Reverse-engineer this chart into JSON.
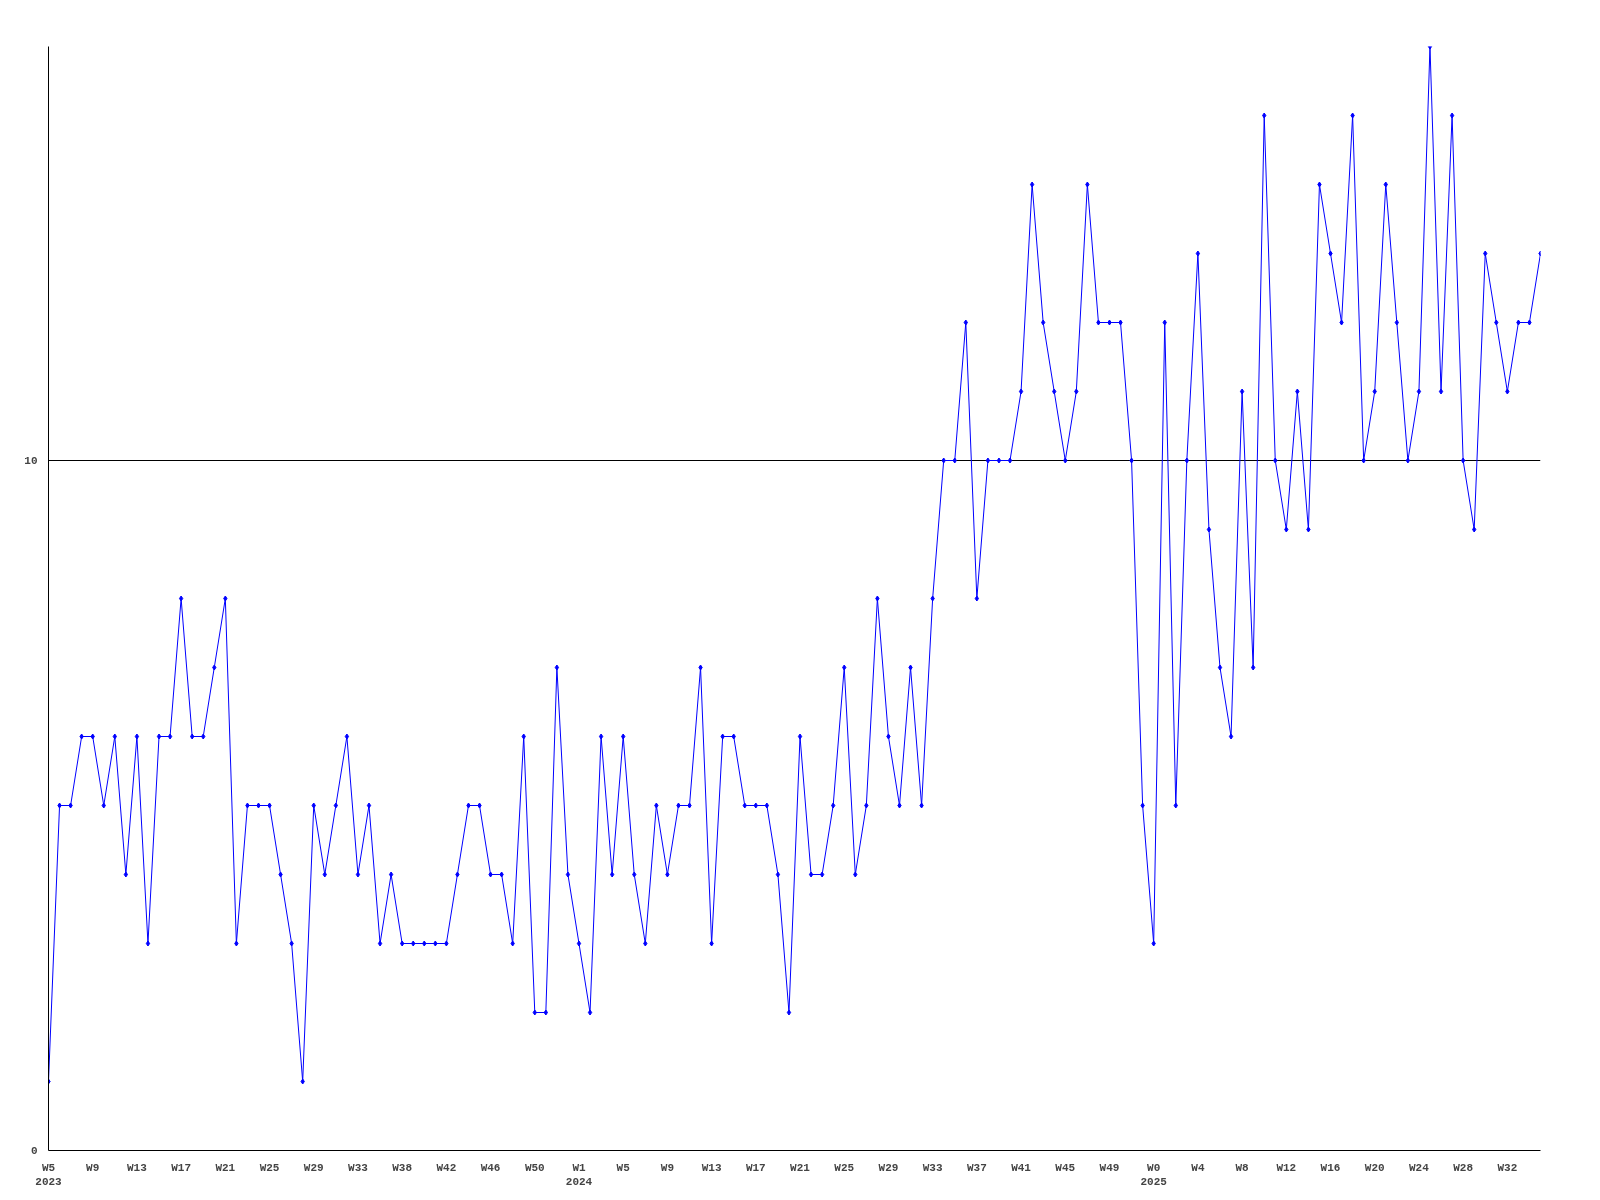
{
  "chart_data": {
    "type": "line",
    "categories": [
      "W5\n2023",
      null,
      null,
      null,
      "W9",
      null,
      null,
      null,
      "W13",
      null,
      null,
      null,
      "W17",
      null,
      null,
      null,
      "W21",
      null,
      null,
      null,
      "W25",
      null,
      null,
      null,
      "W29",
      null,
      null,
      null,
      "W33",
      null,
      null,
      null,
      "W38",
      null,
      null,
      null,
      "W42",
      null,
      null,
      null,
      "W46",
      null,
      null,
      null,
      "W50",
      null,
      null,
      null,
      "W1\n2024",
      null,
      null,
      null,
      "W5",
      null,
      null,
      null,
      "W9",
      null,
      null,
      null,
      "W13",
      null,
      null,
      null,
      "W17",
      null,
      null,
      null,
      "W21",
      null,
      null,
      null,
      "W25",
      null,
      null,
      null,
      "W29",
      null,
      null,
      null,
      "W33",
      null,
      null,
      null,
      "W37",
      null,
      null,
      null,
      "W41",
      null,
      null,
      null,
      "W45",
      null,
      null,
      null,
      "W49",
      null,
      null,
      null,
      "W0\n2025",
      null,
      null,
      null,
      "W4",
      null,
      null,
      null,
      "W8",
      null,
      null,
      null,
      "W12",
      null,
      null,
      null,
      "W16",
      null,
      null,
      null,
      "W20",
      null,
      null,
      null,
      "W24",
      null,
      null,
      null,
      "W28",
      null,
      null,
      null,
      "W32",
      null,
      null,
      null
    ],
    "series": [
      {
        "color": "#0000ff",
        "values": [
          1,
          5,
          5,
          6,
          6,
          5,
          6,
          4,
          6,
          3,
          6,
          6,
          8,
          6,
          6,
          7,
          8,
          3,
          5,
          5,
          5,
          4,
          3,
          1,
          5,
          4,
          5,
          6,
          4,
          5,
          3,
          4,
          3,
          3,
          3,
          3,
          3,
          4,
          5,
          5,
          4,
          4,
          3,
          6,
          2,
          2,
          7,
          4,
          3,
          2,
          6,
          4,
          6,
          4,
          3,
          5,
          4,
          5,
          5,
          7,
          3,
          6,
          6,
          5,
          5,
          5,
          4,
          2,
          6,
          4,
          4,
          5,
          7,
          4,
          5,
          8,
          6,
          5,
          7,
          5,
          8,
          10,
          10,
          12,
          8,
          10,
          10,
          10,
          11,
          14,
          12,
          11,
          10,
          11,
          14,
          12,
          12,
          12,
          10,
          5,
          3,
          12,
          5,
          10,
          13,
          9,
          7,
          6,
          11,
          7,
          15,
          10,
          9,
          11,
          9,
          14,
          13,
          12,
          15,
          10,
          11,
          14,
          12,
          10,
          11,
          16,
          11,
          15,
          10,
          9,
          13,
          12,
          11,
          12,
          12,
          13
        ]
      }
    ],
    "ylim": [
      0,
      16
    ],
    "yticks": [
      0,
      10
    ],
    "grid": "y",
    "marker": "diamond",
    "line_style": "solid"
  }
}
